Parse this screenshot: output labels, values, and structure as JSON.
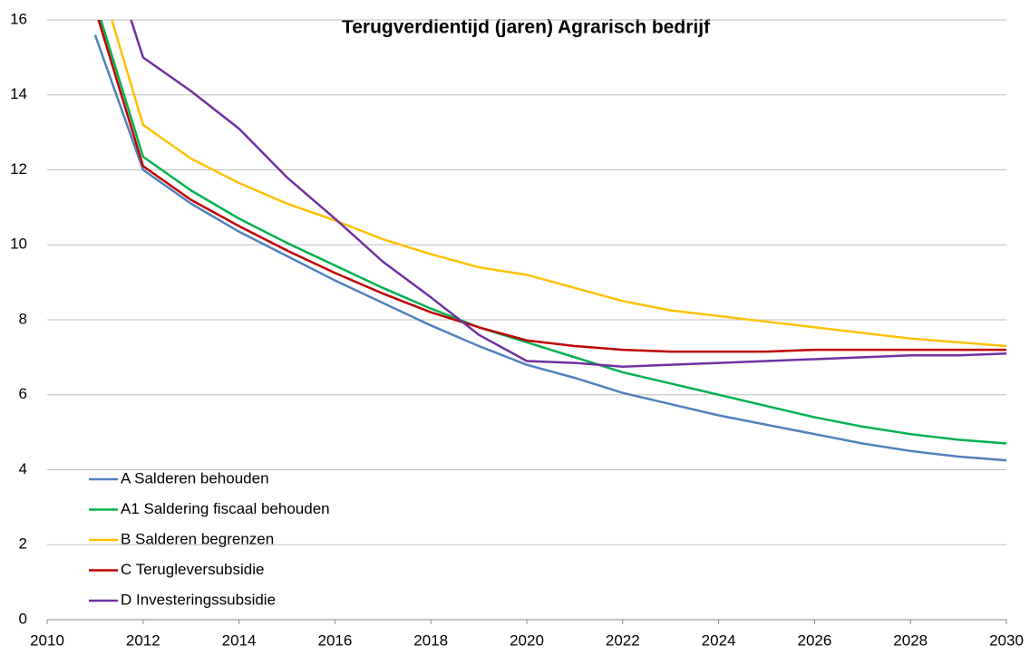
{
  "chart_data": {
    "type": "line",
    "title": "Terugverdientijd (jaren) Agrarisch bedrijf",
    "x": [
      2011,
      2012,
      2013,
      2014,
      2015,
      2016,
      2017,
      2018,
      2019,
      2020,
      2021,
      2022,
      2023,
      2024,
      2025,
      2026,
      2027,
      2028,
      2029,
      2030
    ],
    "series": [
      {
        "name": "A Salderen behouden",
        "color": "#4f81bd",
        "values": [
          15.6,
          12.0,
          11.1,
          10.35,
          9.7,
          9.05,
          8.45,
          7.85,
          7.3,
          6.8,
          6.45,
          6.05,
          5.75,
          5.45,
          5.2,
          4.95,
          4.7,
          4.5,
          4.35,
          4.25
        ]
      },
      {
        "name": "A1 Saldering fiscaal behouden",
        "color": "#00b050",
        "values": [
          16.5,
          12.35,
          11.45,
          10.7,
          10.05,
          9.45,
          8.85,
          8.3,
          7.8,
          7.4,
          7.0,
          6.6,
          6.3,
          6.0,
          5.7,
          5.4,
          5.15,
          4.95,
          4.8,
          4.7
        ]
      },
      {
        "name": "B Salderen begrenzen",
        "color": "#ffc000",
        "values": [
          17.5,
          13.2,
          12.3,
          11.65,
          11.1,
          10.65,
          10.15,
          9.75,
          9.4,
          9.2,
          8.85,
          8.5,
          8.25,
          8.1,
          7.95,
          7.8,
          7.65,
          7.5,
          7.4,
          7.3
        ]
      },
      {
        "name": "C Terugleversubsidie",
        "color": "#c00000",
        "values": [
          16.3,
          12.1,
          11.2,
          10.5,
          9.85,
          9.25,
          8.7,
          8.2,
          7.8,
          7.45,
          7.3,
          7.2,
          7.15,
          7.15,
          7.15,
          7.2,
          7.2,
          7.2,
          7.2,
          7.2
        ]
      },
      {
        "name": "D Investeringssubsidie",
        "color": "#7030a0",
        "values": [
          19,
          15.0,
          14.1,
          13.1,
          11.8,
          10.7,
          9.55,
          8.6,
          7.6,
          6.9,
          6.85,
          6.75,
          6.8,
          6.85,
          6.9,
          6.95,
          7.0,
          7.05,
          7.05,
          7.1
        ]
      }
    ],
    "xlim": [
      2010,
      2030
    ],
    "xticks": [
      2010,
      2012,
      2014,
      2016,
      2018,
      2020,
      2022,
      2024,
      2026,
      2028,
      2030
    ],
    "ylim": [
      0,
      16
    ],
    "yticks": [
      0,
      2,
      4,
      6,
      8,
      10,
      12,
      14,
      16
    ],
    "grid": true,
    "legend": "lower left"
  }
}
